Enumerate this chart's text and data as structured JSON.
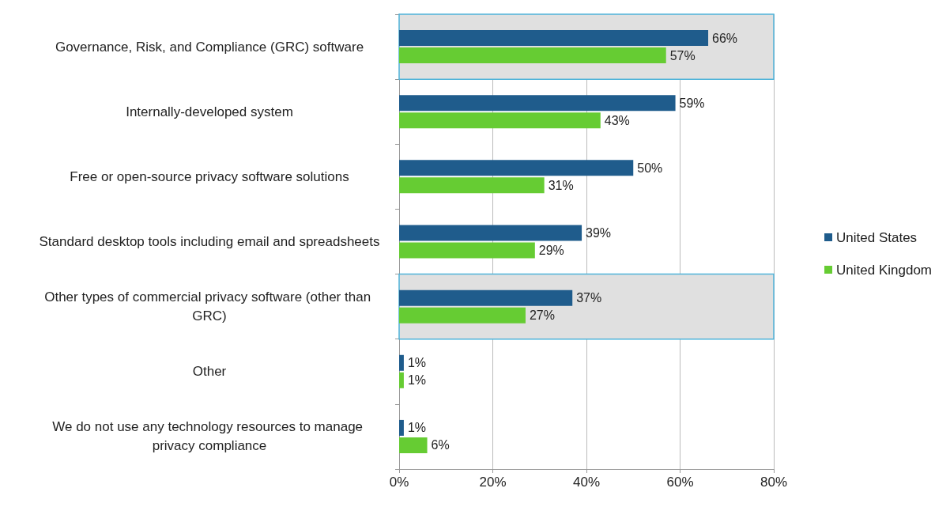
{
  "chart_data": {
    "type": "bar",
    "orientation": "horizontal",
    "categories": [
      "Governance, Risk, and Compliance (GRC) software",
      "Internally-developed system",
      "Free or open-source privacy software solutions",
      "Standard desktop tools including email and spreadsheets",
      "Other types of commercial privacy software (other than GRC)",
      "Other",
      "We do not use any technology resources to manage privacy compliance"
    ],
    "series": [
      {
        "name": "United States",
        "color": "#1f5c8c",
        "values": [
          66,
          59,
          50,
          39,
          37,
          1,
          1
        ],
        "value_labels": [
          "66%",
          "59%",
          "50%",
          "39%",
          "37%",
          "1%",
          "1%"
        ]
      },
      {
        "name": "United Kingdom",
        "color": "#66cc33",
        "values": [
          57,
          43,
          31,
          29,
          27,
          1,
          6
        ],
        "value_labels": [
          "57%",
          "43%",
          "31%",
          "29%",
          "27%",
          "1%",
          "6%"
        ]
      }
    ],
    "xlim": [
      0,
      80
    ],
    "xticks": [
      {
        "value": 0,
        "label": "0%"
      },
      {
        "value": 20,
        "label": "20%"
      },
      {
        "value": 40,
        "label": "40%"
      },
      {
        "value": 60,
        "label": "60%"
      },
      {
        "value": 80,
        "label": "80%"
      }
    ],
    "grid": "x",
    "legend": "right",
    "bands": [
      {
        "axis": "y",
        "from": "Governance, Risk, and Compliance (GRC) software",
        "to": "Governance, Risk, and Compliance (GRC) software",
        "color": "#e0e0e0"
      },
      {
        "axis": "y",
        "from": "Other types of commercial privacy software (other than GRC)",
        "to": "Other types of commercial privacy software (other than GRC)",
        "color": "#e0e0e0"
      }
    ]
  }
}
